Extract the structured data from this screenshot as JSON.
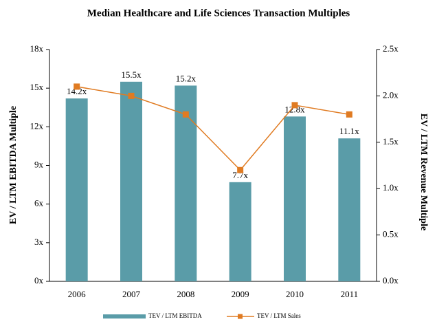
{
  "chart_data": {
    "type": "bar",
    "title": "Median Healthcare and Life Sciences Transaction Multiples",
    "y_label": "EV / LTM EBITDA Multiple",
    "y2_label": "EV / LTM Revenue Multiple",
    "categories": [
      "2006",
      "2007",
      "2008",
      "2009",
      "2010",
      "2011"
    ],
    "series": [
      {
        "name": "TEV / LTM EBITDA",
        "type": "bar",
        "color": "#5a9ca8",
        "values": [
          14.2,
          15.5,
          15.2,
          7.7,
          12.8,
          11.1
        ],
        "value_labels": [
          "14.2x",
          "15.5x",
          "15.2x",
          "7.7x",
          "12.8x",
          "11.1x"
        ]
      },
      {
        "name": "TEV / LTM Sales",
        "type": "line",
        "axis": "y2",
        "color": "#e07b22",
        "values": [
          2.1,
          2.0,
          1.8,
          1.2,
          1.9,
          1.8
        ]
      }
    ],
    "ylim": [
      0,
      18
    ],
    "yticks": [
      {
        "value": 0,
        "label": "0x"
      },
      {
        "value": 3,
        "label": "3x"
      },
      {
        "value": 6,
        "label": "6x"
      },
      {
        "value": 9,
        "label": "9x"
      },
      {
        "value": 12,
        "label": "12x"
      },
      {
        "value": 15,
        "label": "15x"
      },
      {
        "value": 18,
        "label": "18x"
      }
    ],
    "y2lim": [
      0,
      2.5
    ],
    "y2ticks": [
      {
        "value": 0,
        "label": "0.0x"
      },
      {
        "value": 0.5,
        "label": "0.5x"
      },
      {
        "value": 1,
        "label": "1.0x"
      },
      {
        "value": 1.5,
        "label": "1.5x"
      },
      {
        "value": 2,
        "label": "2.0x"
      },
      {
        "value": 2.5,
        "label": "2.5x"
      }
    ],
    "legend": "bottom"
  }
}
